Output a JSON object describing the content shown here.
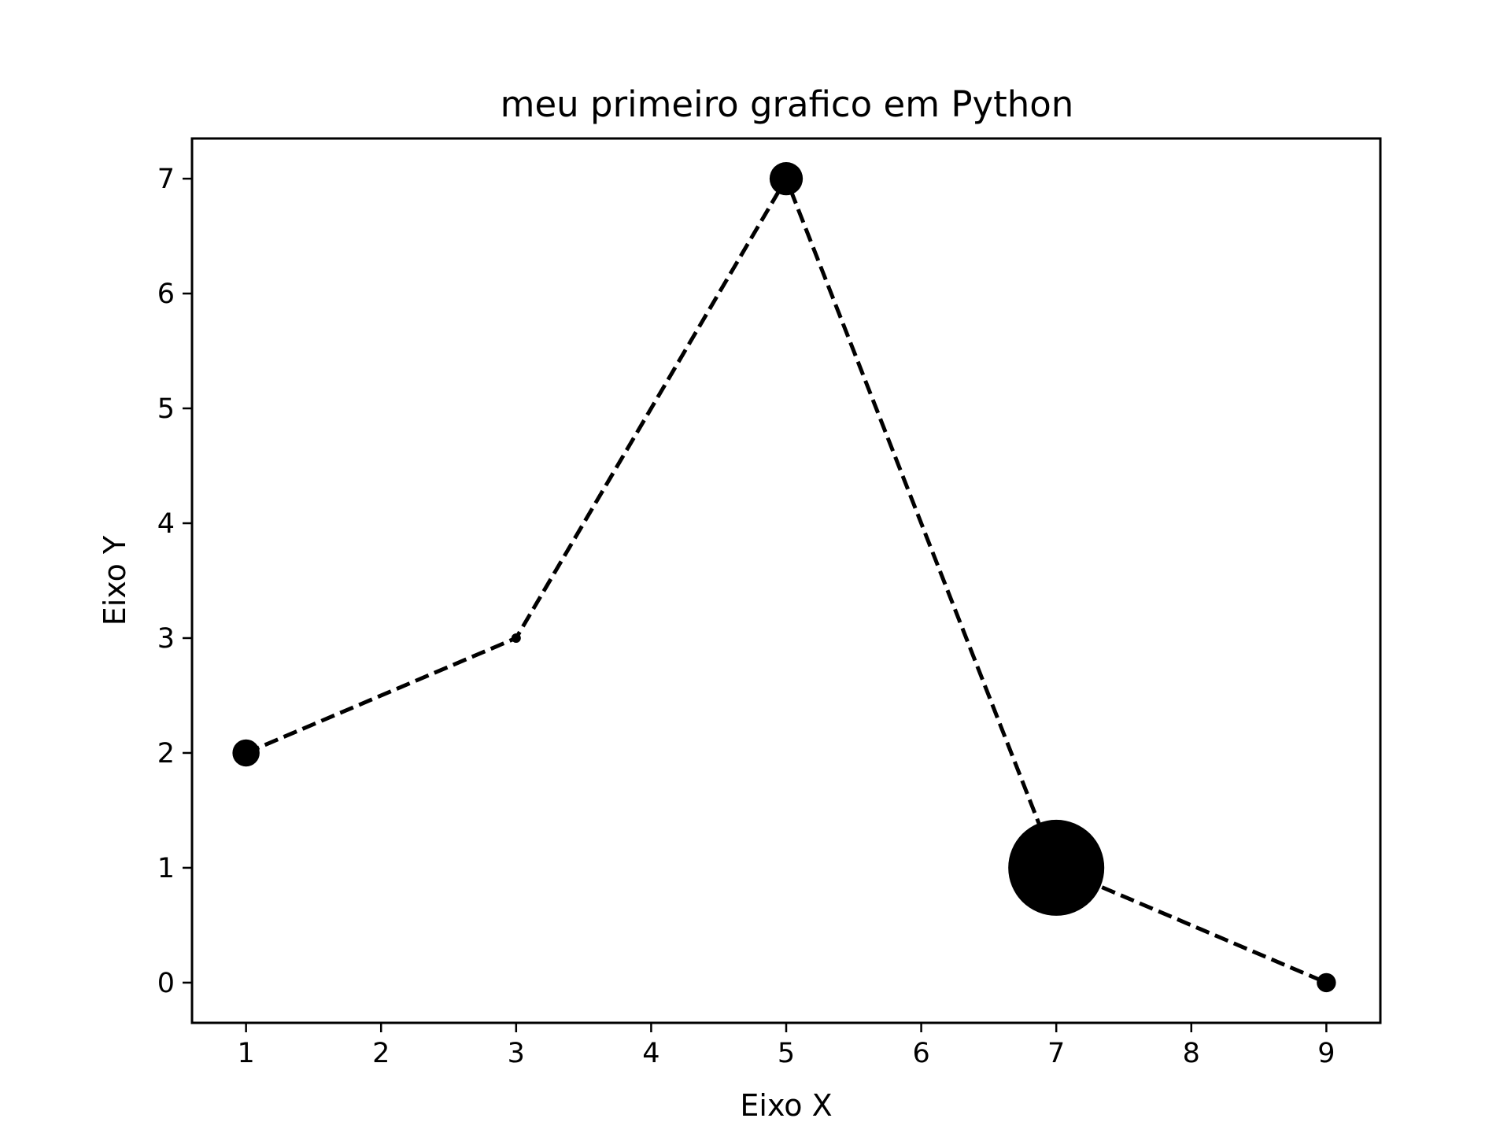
{
  "chart_data": {
    "type": "scatter",
    "title": "meu primeiro grafico em Python",
    "xlabel": "Eixo X",
    "ylabel": "Eixo Y",
    "xlim": [
      0.6,
      9.4
    ],
    "ylim": [
      -0.35,
      7.35
    ],
    "xticks": [
      "1",
      "2",
      "3",
      "4",
      "5",
      "6",
      "7",
      "8",
      "9"
    ],
    "yticks": [
      "0",
      "1",
      "2",
      "3",
      "4",
      "5",
      "6",
      "7"
    ],
    "grid": false,
    "line_style": "dashed",
    "color": "#000000",
    "series": [
      {
        "x": [
          1,
          3,
          5,
          7,
          9
        ],
        "y": [
          2,
          3,
          7,
          1,
          0
        ],
        "sizes": [
          20,
          1,
          30,
          250,
          10
        ]
      }
    ]
  }
}
